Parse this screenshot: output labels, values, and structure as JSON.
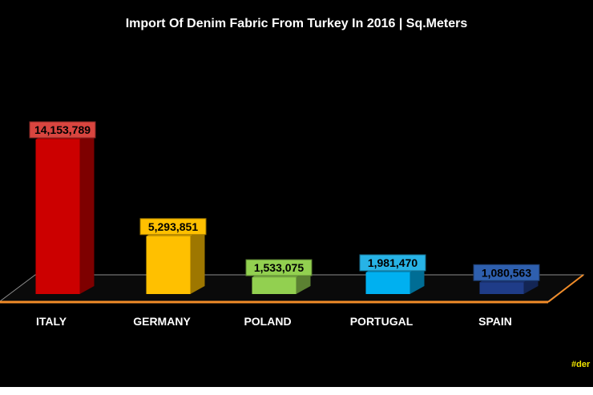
{
  "chart_data": {
    "type": "bar",
    "title": "Import Of Denim Fabric From Turkey In 2016 | Sq.Meters",
    "xlabel": "",
    "ylabel": "",
    "categories": [
      "ITALY",
      "GERMANY",
      "POLAND",
      "PORTUGAL",
      "SPAIN"
    ],
    "values": [
      14153789,
      5293851,
      1533075,
      1981470,
      1080563
    ],
    "data_labels": [
      "14,153,789",
      "5,293,851",
      "1,533,075",
      "1,981,470",
      "1,080,563"
    ],
    "colors": [
      "#cc0000",
      "#ffc000",
      "#92d050",
      "#00b0f0",
      "#1f3c88"
    ],
    "label_colors": [
      "#d9453f",
      "#ffc000",
      "#92d050",
      "#27b3e6",
      "#2e5fae"
    ],
    "style": "3d",
    "background": "#000000",
    "floor_edge_color": "#f28c28",
    "grid": false,
    "legend": "none"
  },
  "footer": {
    "source_text": "#der"
  }
}
